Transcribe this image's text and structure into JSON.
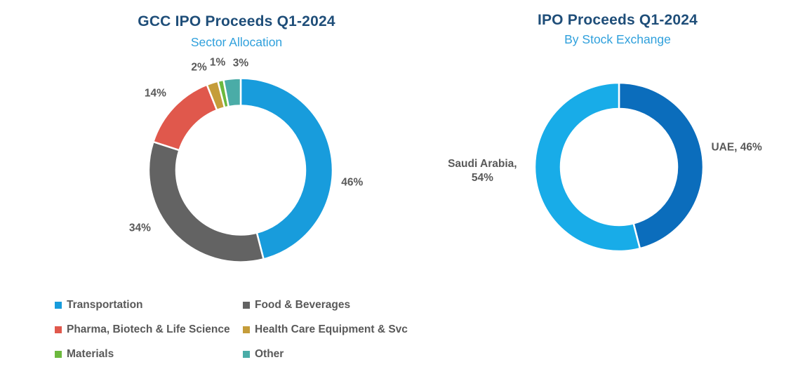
{
  "chart_data": [
    {
      "type": "pie",
      "subtype": "donut",
      "title": "GCC IPO Proceeds Q1-2024",
      "subtitle": "Sector Allocation",
      "categories": [
        "Transportation",
        "Food & Beverages",
        "Pharma, Biotech & Life Science",
        "Health Care Equipment & Svc",
        "Materials",
        "Other"
      ],
      "values": [
        46,
        34,
        14,
        2,
        1,
        3
      ],
      "unit": "%",
      "data_labels": [
        "46%",
        "34%",
        "14%",
        "2%",
        "1%",
        "3%"
      ],
      "colors": [
        "#189CDC",
        "#636363",
        "#E0584C",
        "#C59D3A",
        "#6CB93E",
        "#4AACA7"
      ],
      "start_angle_deg": 0,
      "direction": "clockwise",
      "legend_position": "bottom"
    },
    {
      "type": "pie",
      "subtype": "donut",
      "title": "IPO Proceeds Q1-2024",
      "subtitle": "By Stock Exchange",
      "categories": [
        "UAE",
        "Saudi Arabia"
      ],
      "values": [
        46,
        54
      ],
      "unit": "%",
      "data_labels": [
        "UAE, 46%",
        "Saudi Arabia, 54%"
      ],
      "colors": [
        "#0B6DBC",
        "#18ACE8"
      ],
      "start_angle_deg": 0,
      "direction": "clockwise",
      "legend_position": "none"
    }
  ],
  "legend": {
    "items": [
      {
        "label": "Transportation",
        "color": "#189CDC"
      },
      {
        "label": "Food & Beverages",
        "color": "#636363"
      },
      {
        "label": "Pharma, Biotech & Life Science",
        "color": "#E0584C"
      },
      {
        "label": "Health Care Equipment & Svc",
        "color": "#C59D3A"
      },
      {
        "label": "Materials",
        "color": "#6CB93E"
      },
      {
        "label": "Other",
        "color": "#4AACA7"
      }
    ]
  },
  "theme": {
    "title_color": "#1F4E79",
    "subtitle_color": "#2FA0DC",
    "label_color": "#595959",
    "background": "#FFFFFF"
  }
}
